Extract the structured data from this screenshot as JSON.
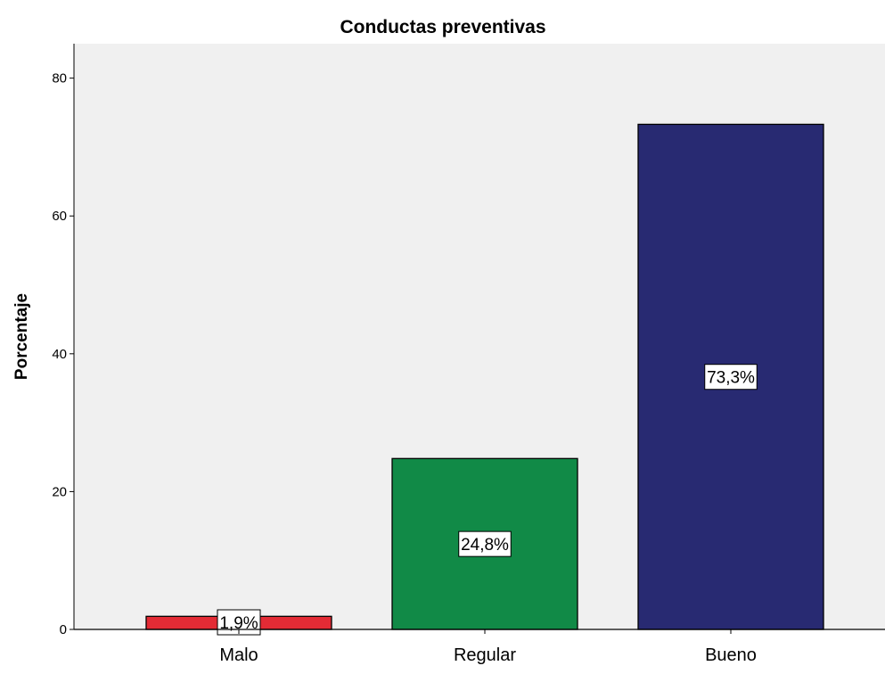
{
  "chart_data": {
    "type": "bar",
    "title": "Conductas preventivas",
    "xlabel": "",
    "ylabel": "Porcentaje",
    "categories": [
      "Malo",
      "Regular",
      "Bueno"
    ],
    "values": [
      1.9,
      24.8,
      73.3
    ],
    "data_labels": [
      "1,9%",
      "24,8%",
      "73,3%"
    ],
    "colors": [
      "#e32b35",
      "#118a47",
      "#282a72"
    ],
    "ylim": [
      0,
      85
    ],
    "yticks": [
      0,
      20,
      40,
      60,
      80
    ],
    "ytick_labels": [
      "0",
      "20",
      "40",
      "60",
      "80"
    ],
    "plot_background": "#f0f0f0",
    "grid": false,
    "legend": "none"
  }
}
